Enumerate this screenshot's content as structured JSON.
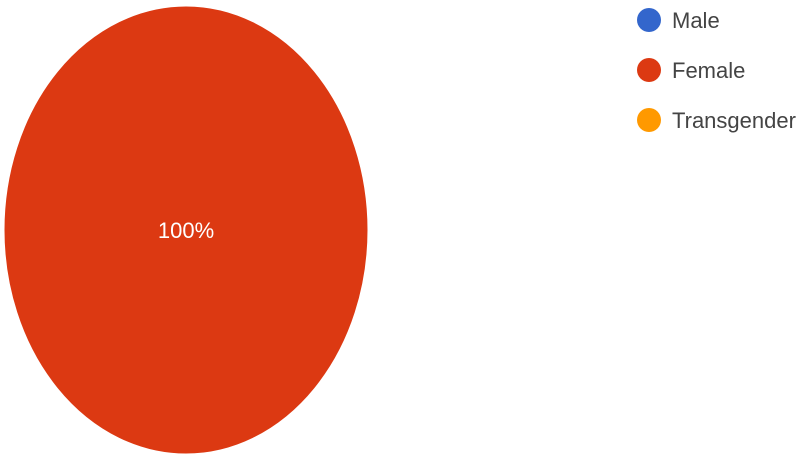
{
  "chart_data": {
    "type": "pie",
    "categories": [
      "Male",
      "Female",
      "Transgender"
    ],
    "values": [
      0,
      100,
      0
    ],
    "value_labels": [
      "",
      "100%",
      ""
    ],
    "colors": [
      "#3366cc",
      "#dc3912",
      "#ff9900"
    ],
    "legend_position": "top-right"
  }
}
